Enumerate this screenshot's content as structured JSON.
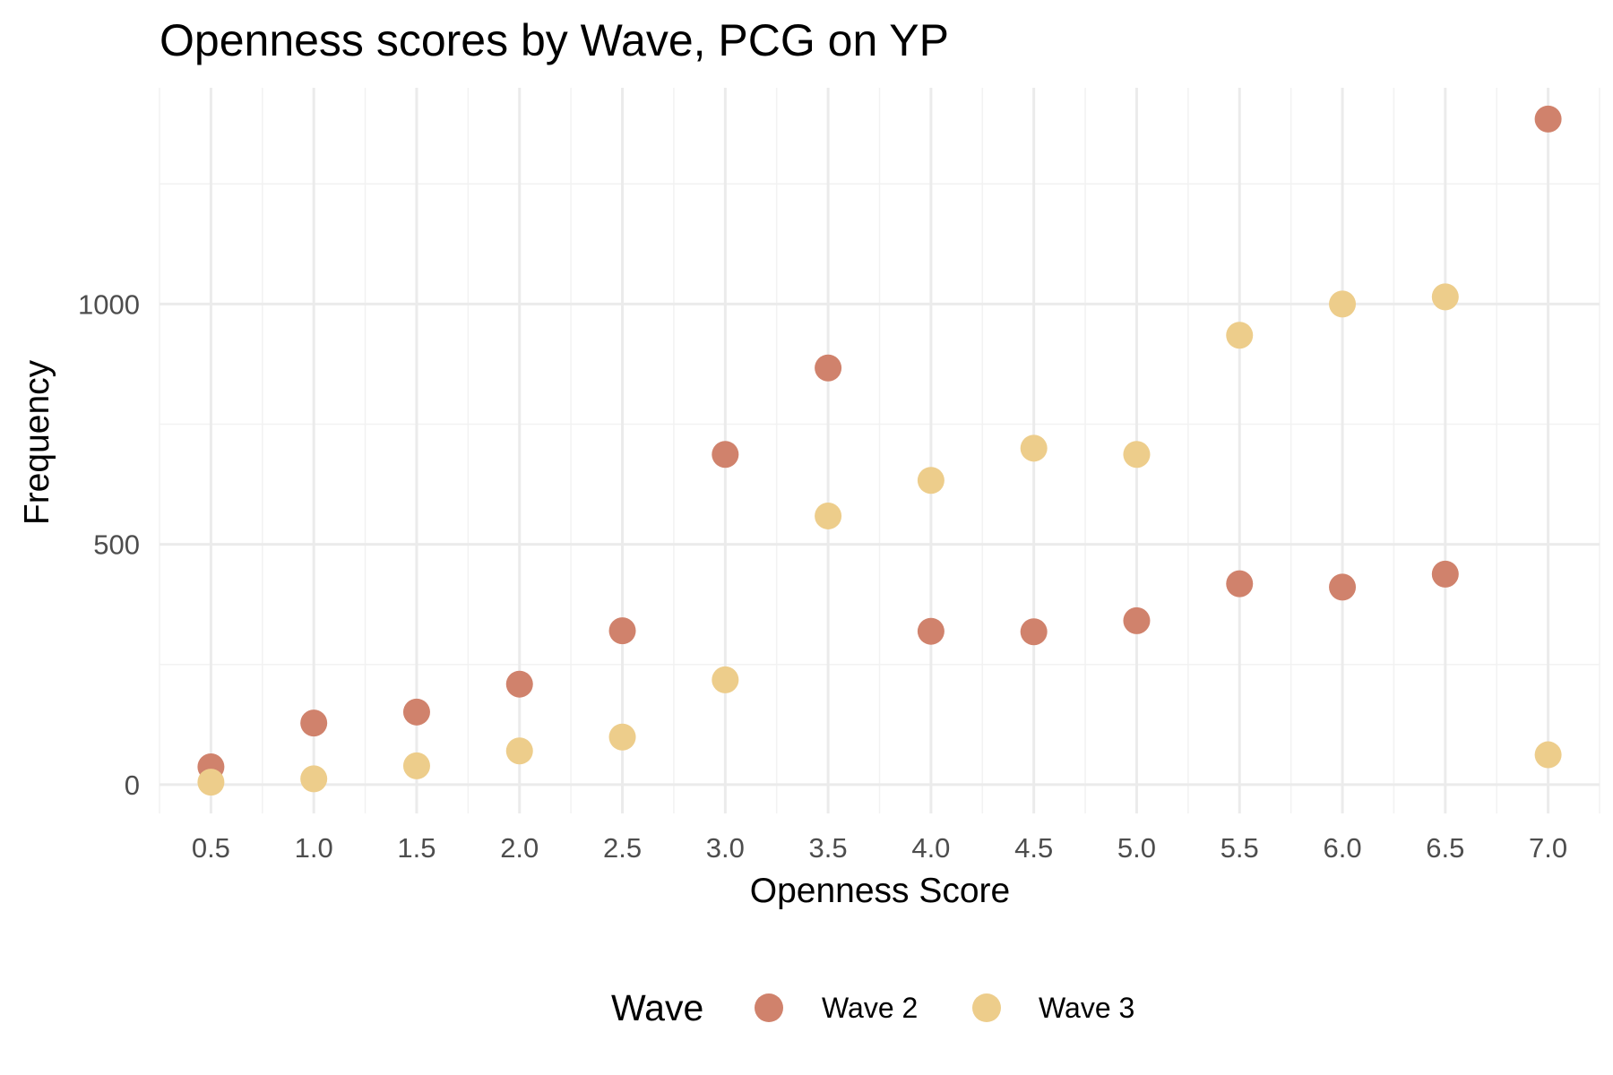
{
  "chart_data": {
    "type": "scatter",
    "title": "Openness scores by Wave, PCG on YP",
    "xlabel": "Openness Score",
    "ylabel": "Frequency",
    "x": [
      0.5,
      1.0,
      1.5,
      2.0,
      2.5,
      3.0,
      3.5,
      4.0,
      4.5,
      5.0,
      5.5,
      6.0,
      6.5,
      7.0
    ],
    "x_tick_labels": [
      "0.5",
      "1.0",
      "1.5",
      "2.0",
      "2.5",
      "3.0",
      "3.5",
      "4.0",
      "4.5",
      "5.0",
      "5.5",
      "6.0",
      "6.5",
      "7.0"
    ],
    "y_ticks": [
      0,
      500,
      1000
    ],
    "y_tick_labels": [
      "0",
      "500",
      "1000"
    ],
    "xlim": [
      0.25,
      7.25
    ],
    "ylim": [
      -60,
      1450
    ],
    "grid": true,
    "legend": {
      "title": "Wave",
      "position": "bottom"
    },
    "series": [
      {
        "name": "Wave 2",
        "color": "#d0826c",
        "values": [
          37,
          128,
          151,
          209,
          320,
          687,
          867,
          319,
          318,
          341,
          418,
          411,
          438,
          1385
        ]
      },
      {
        "name": "Wave 3",
        "color": "#edcd8b",
        "values": [
          5,
          12,
          39,
          70,
          99,
          218,
          559,
          633,
          700,
          687,
          935,
          1000,
          1015,
          62
        ]
      }
    ]
  }
}
